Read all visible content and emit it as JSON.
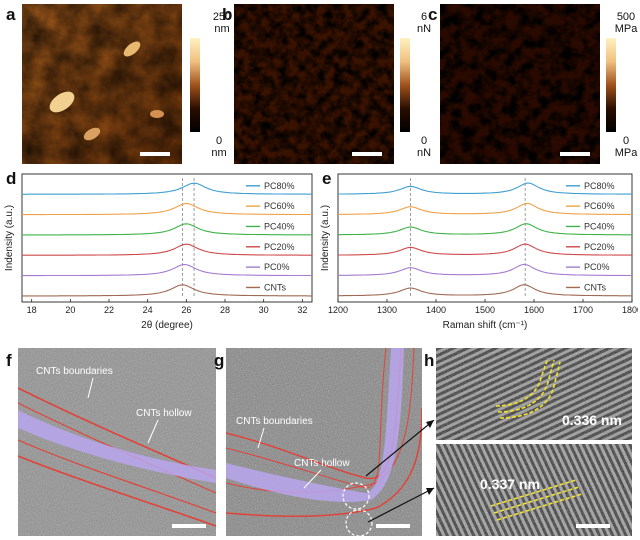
{
  "panels": {
    "a": {
      "letter": "a",
      "cbar_top": "250",
      "cbar_top_unit": "nm",
      "cbar_bottom": "0",
      "cbar_bottom_unit": "nm"
    },
    "b": {
      "letter": "b",
      "cbar_top": "6",
      "cbar_top_unit": "nN",
      "cbar_bottom": "0",
      "cbar_bottom_unit": "nN"
    },
    "c": {
      "letter": "c",
      "cbar_top": "500",
      "cbar_top_unit": "MPa",
      "cbar_bottom": "0",
      "cbar_bottom_unit": "MPa"
    },
    "f": {
      "letter": "f",
      "label_boundaries": "CNTs boundaries",
      "label_hollow": "CNTs hollow"
    },
    "g": {
      "letter": "g",
      "label_boundaries": "CNTs boundaries",
      "label_hollow": "CNTs hollow"
    },
    "h": {
      "letter": "h",
      "label_top": "0.336 nm",
      "label_bottom": "0.337 nm"
    }
  },
  "colors": {
    "afm_dark": "#2a0d00",
    "afm_mid": "#a0521c",
    "afm_light": "#f0c080",
    "tem_bg": "#9a9a9a",
    "boundary_red": "#e0433a",
    "hollow_purple": "#b8a6ee",
    "fringe_yellow": "#f2e22a"
  },
  "chart_data": [
    {
      "panel": "d",
      "type": "line",
      "xlabel": "2θ (degree)",
      "ylabel": "Indensity (a.u.)",
      "xlim": [
        17.5,
        32.5
      ],
      "xticks": [
        18,
        20,
        22,
        24,
        26,
        28,
        30,
        32
      ],
      "series": [
        {
          "name": "PC80%",
          "color": "#3f9fd0",
          "peak": 26.4
        },
        {
          "name": "PC60%",
          "color": "#f0a24a",
          "peak": 26.0
        },
        {
          "name": "PC40%",
          "color": "#3fb34a",
          "peak": 26.0
        },
        {
          "name": "PC20%",
          "color": "#d04a4a",
          "peak": 26.0
        },
        {
          "name": "PC0%",
          "color": "#a57cd0",
          "peak": 25.9
        },
        {
          "name": "CNTs",
          "color": "#a06a55",
          "peak": 25.8
        }
      ],
      "dashed_lines": [
        25.8,
        26.4
      ]
    },
    {
      "panel": "e",
      "type": "line",
      "xlabel": "Raman shift (cm⁻¹)",
      "ylabel": "Indensity (a.u.)",
      "xlim": [
        1200,
        1800
      ],
      "xticks": [
        1200,
        1300,
        1400,
        1500,
        1600,
        1700,
        1800
      ],
      "series": [
        {
          "name": "PC80%",
          "color": "#3f9fd0",
          "peaks": [
            1348,
            1588
          ]
        },
        {
          "name": "PC60%",
          "color": "#f0a24a",
          "peaks": [
            1348,
            1586
          ]
        },
        {
          "name": "PC40%",
          "color": "#3fb34a",
          "peaks": [
            1348,
            1584
          ]
        },
        {
          "name": "PC20%",
          "color": "#d04a4a",
          "peaks": [
            1348,
            1582
          ]
        },
        {
          "name": "PC0%",
          "color": "#a57cd0",
          "peaks": [
            1348,
            1580
          ]
        },
        {
          "name": "CNTs",
          "color": "#a06a55",
          "peaks": [
            1348,
            1580
          ]
        }
      ],
      "dashed_lines": [
        1348,
        1582
      ]
    }
  ]
}
